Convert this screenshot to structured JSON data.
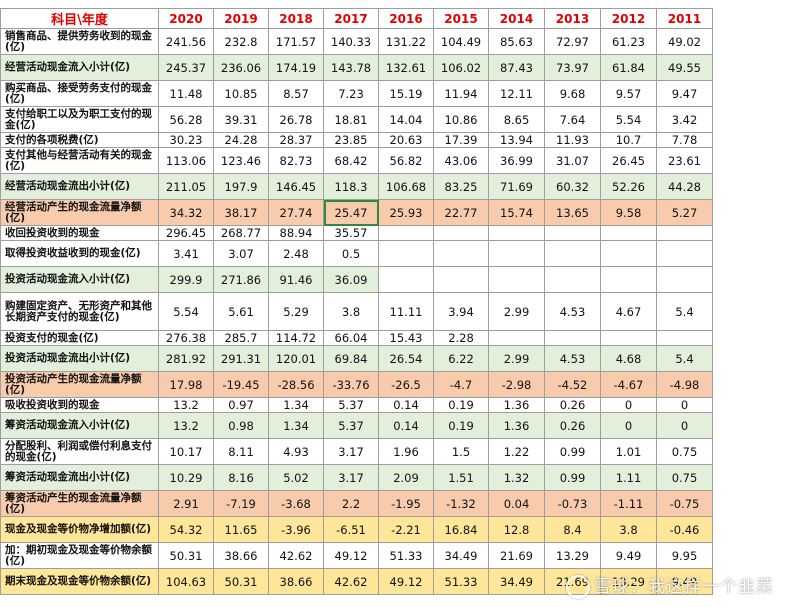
{
  "header": [
    "科目\\年度",
    "2020",
    "2019",
    "2018",
    "2017",
    "2016",
    "2015",
    "2014",
    "2013",
    "2012",
    "2011"
  ],
  "rows": [
    {
      "label": "销售商品、提供劳务收到的现金(亿)",
      "style": "white",
      "h": 26,
      "values": [
        "241.56",
        "232.8",
        "171.57",
        "140.33",
        "131.22",
        "104.49",
        "85.63",
        "72.97",
        "61.23",
        "49.02"
      ]
    },
    {
      "label": "经营活动现金流入小计(亿)",
      "style": "green",
      "h": 26,
      "values": [
        "245.37",
        "236.06",
        "174.19",
        "143.78",
        "132.61",
        "106.02",
        "87.43",
        "73.97",
        "61.84",
        "49.55"
      ]
    },
    {
      "label": "购买商品、接受劳务支付的现金(亿)",
      "style": "white",
      "h": 26,
      "values": [
        "11.48",
        "10.85",
        "8.57",
        "7.23",
        "15.19",
        "11.94",
        "12.11",
        "9.68",
        "9.57",
        "9.47"
      ]
    },
    {
      "label": "支付给职工以及为职工支付的现金(亿)",
      "style": "white",
      "h": 26,
      "values": [
        "56.28",
        "39.31",
        "26.78",
        "18.81",
        "14.04",
        "10.86",
        "8.65",
        "7.64",
        "5.54",
        "3.42"
      ]
    },
    {
      "label": "支付的各项税费(亿)",
      "style": "white",
      "h": 14,
      "values": [
        "30.23",
        "24.28",
        "28.37",
        "23.85",
        "20.63",
        "17.39",
        "13.94",
        "11.93",
        "10.7",
        "7.78"
      ]
    },
    {
      "label": "支付其他与经营活动有关的现金(亿)",
      "style": "white",
      "h": 26,
      "values": [
        "113.06",
        "123.46",
        "82.73",
        "68.42",
        "56.82",
        "43.06",
        "36.99",
        "31.07",
        "26.45",
        "23.61"
      ]
    },
    {
      "label": "经营活动现金流出小计(亿)",
      "style": "green",
      "h": 26,
      "values": [
        "211.05",
        "197.9",
        "146.45",
        "118.3",
        "106.68",
        "83.25",
        "71.69",
        "60.32",
        "52.26",
        "44.28"
      ]
    },
    {
      "label": "经营活动产生的现金流量净额(亿)",
      "style": "orange",
      "h": 26,
      "values": [
        "34.32",
        "38.17",
        "27.74",
        "25.47",
        "25.93",
        "22.77",
        "15.74",
        "13.65",
        "9.58",
        "5.27"
      ],
      "selected": 3
    },
    {
      "label": "收回投资收到的现金",
      "style": "white",
      "h": 14,
      "values": [
        "296.45",
        "268.77",
        "88.94",
        "35.57",
        "",
        "",
        "",
        "",
        "",
        ""
      ]
    },
    {
      "label": "取得投资收益收到的现金(亿)",
      "style": "white",
      "h": 26,
      "values": [
        "3.41",
        "3.07",
        "2.48",
        "0.5",
        "",
        "",
        "",
        "",
        "",
        ""
      ]
    },
    {
      "label": "投资活动现金流入小计(亿)",
      "style": "green",
      "h": 26,
      "values": [
        "299.9",
        "271.86",
        "91.46",
        "36.09",
        "",
        "",
        "",
        "",
        "",
        ""
      ],
      "blankWhite": true
    },
    {
      "label": "购建固定资产、无形资产和其他长期资产支付的现金(亿)",
      "style": "white",
      "h": 38,
      "values": [
        "5.54",
        "5.61",
        "5.29",
        "3.8",
        "11.11",
        "3.94",
        "2.99",
        "4.53",
        "4.67",
        "5.4"
      ]
    },
    {
      "label": "投资支付的现金(亿)",
      "style": "white",
      "h": 14,
      "values": [
        "276.38",
        "285.7",
        "114.72",
        "66.04",
        "15.43",
        "2.28",
        "",
        "",
        "",
        ""
      ]
    },
    {
      "label": "投资活动现金流出小计(亿)",
      "style": "green",
      "h": 26,
      "values": [
        "281.92",
        "291.31",
        "120.01",
        "69.84",
        "26.54",
        "6.22",
        "2.99",
        "4.53",
        "4.68",
        "5.4"
      ]
    },
    {
      "label": "投资活动产生的现金流量净额(亿)",
      "style": "orange",
      "h": 26,
      "values": [
        "17.98",
        "-19.45",
        "-28.56",
        "-33.76",
        "-26.5",
        "-4.7",
        "-2.98",
        "-4.52",
        "-4.67",
        "-4.98"
      ]
    },
    {
      "label": "吸收投资收到的现金",
      "style": "white",
      "h": 14,
      "values": [
        "13.2",
        "0.97",
        "1.34",
        "5.37",
        "0.14",
        "0.19",
        "1.36",
        "0.26",
        "0",
        "0"
      ]
    },
    {
      "label": "筹资活动现金流入小计(亿)",
      "style": "green",
      "h": 26,
      "values": [
        "13.2",
        "0.98",
        "1.34",
        "5.37",
        "0.14",
        "0.19",
        "1.36",
        "0.26",
        "0",
        "0"
      ]
    },
    {
      "label": "分配股利、利润或偿付利息支付的现金(亿)",
      "style": "white",
      "h": 26,
      "values": [
        "10.17",
        "8.11",
        "4.93",
        "3.17",
        "1.96",
        "1.5",
        "1.22",
        "0.99",
        "1.01",
        "0.75"
      ]
    },
    {
      "label": "筹资活动现金流出小计(亿)",
      "style": "green",
      "h": 26,
      "values": [
        "10.29",
        "8.16",
        "5.02",
        "3.17",
        "2.09",
        "1.51",
        "1.32",
        "0.99",
        "1.11",
        "0.75"
      ]
    },
    {
      "label": "筹资活动产生的现金流量净额(亿)",
      "style": "orange",
      "h": 26,
      "values": [
        "2.91",
        "-7.19",
        "-3.68",
        "2.2",
        "-1.95",
        "-1.32",
        "0.04",
        "-0.73",
        "-1.11",
        "-0.75"
      ]
    },
    {
      "label": "现金及现金等价物净增加额(亿)",
      "style": "yellow",
      "h": 26,
      "values": [
        "54.32",
        "11.65",
        "-3.96",
        "-6.51",
        "-2.21",
        "16.84",
        "12.8",
        "8.4",
        "3.8",
        "-0.46"
      ]
    },
    {
      "label": "加：期初现金及现金等价物余额(亿)",
      "style": "white",
      "h": 26,
      "values": [
        "50.31",
        "38.66",
        "42.62",
        "49.12",
        "51.33",
        "34.49",
        "21.69",
        "13.29",
        "9.49",
        "9.95"
      ]
    },
    {
      "label": "期末现金及现金等价物余额(亿)",
      "style": "yellow",
      "h": 26,
      "values": [
        "104.63",
        "50.31",
        "38.66",
        "42.62",
        "49.12",
        "51.33",
        "34.49",
        "21.69",
        "13.29",
        "9.49"
      ]
    }
  ],
  "watermark": "雪球：我这样一个韭菜"
}
